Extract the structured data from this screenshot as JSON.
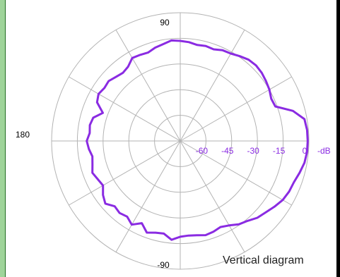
{
  "chart_data": {
    "type": "polar",
    "title": "Vertical diagram",
    "angle_labels": [
      {
        "text": "90",
        "angle": 90
      },
      {
        "text": "180",
        "angle": 180
      },
      {
        "text": "-90",
        "angle": -90
      }
    ],
    "radial_ticks": [
      "-60",
      "-45",
      "-30",
      "-15",
      "0"
    ],
    "radial_unit": "-dB",
    "radial_range": [
      -75,
      0
    ],
    "grid": true,
    "spoke_step_deg": 30,
    "colors": {
      "series": "#8a2be2",
      "grid": "#b3b3b3",
      "labels": "#8a2be2"
    },
    "series": [
      {
        "points": [
          [
            0,
            -0.7
          ],
          [
            5,
            -0.8
          ],
          [
            10,
            -1.5
          ],
          [
            15,
            -7
          ],
          [
            20,
            -16
          ],
          [
            25,
            -16.5
          ],
          [
            30,
            -15
          ],
          [
            35,
            -14
          ],
          [
            40,
            -13
          ],
          [
            45,
            -12.5
          ],
          [
            50,
            -13
          ],
          [
            55,
            -14.5
          ],
          [
            60,
            -16
          ],
          [
            65,
            -16.5
          ],
          [
            70,
            -18
          ],
          [
            75,
            -17.5
          ],
          [
            80,
            -18
          ],
          [
            85,
            -17
          ],
          [
            90,
            -16.5
          ],
          [
            95,
            -16
          ],
          [
            100,
            -17.5
          ],
          [
            105,
            -18.5
          ],
          [
            110,
            -20
          ],
          [
            115,
            -19.5
          ],
          [
            120,
            -19
          ],
          [
            125,
            -22
          ],
          [
            130,
            -23
          ],
          [
            135,
            -22
          ],
          [
            140,
            -20.5
          ],
          [
            145,
            -21
          ],
          [
            150,
            -20
          ],
          [
            155,
            -21.5
          ],
          [
            160,
            -27
          ],
          [
            165,
            -22.5
          ],
          [
            170,
            -21.5
          ],
          [
            175,
            -22
          ],
          [
            180,
            -20.5
          ],
          [
            185,
            -21.5
          ],
          [
            190,
            -23
          ],
          [
            195,
            -22
          ],
          [
            200,
            -20.5
          ],
          [
            205,
            -22
          ],
          [
            210,
            -23
          ],
          [
            215,
            -20
          ],
          [
            220,
            -18
          ],
          [
            225,
            -21
          ],
          [
            230,
            -20
          ],
          [
            235,
            -21
          ],
          [
            240,
            -18.5
          ],
          [
            245,
            -22
          ],
          [
            250,
            -18
          ],
          [
            255,
            -19.5
          ],
          [
            260,
            -20
          ],
          [
            265,
            -17
          ],
          [
            270,
            -19
          ],
          [
            275,
            -19.5
          ],
          [
            280,
            -19
          ],
          [
            285,
            -18
          ],
          [
            290,
            -18.5
          ],
          [
            295,
            -19.5
          ],
          [
            300,
            -18
          ],
          [
            305,
            -15.5
          ],
          [
            310,
            -14
          ],
          [
            315,
            -11.5
          ],
          [
            320,
            -10
          ],
          [
            325,
            -8
          ],
          [
            330,
            -6
          ],
          [
            335,
            -5
          ],
          [
            340,
            -4.5
          ],
          [
            345,
            -3
          ],
          [
            350,
            -1.5
          ],
          [
            355,
            -0.8
          ]
        ]
      }
    ]
  }
}
